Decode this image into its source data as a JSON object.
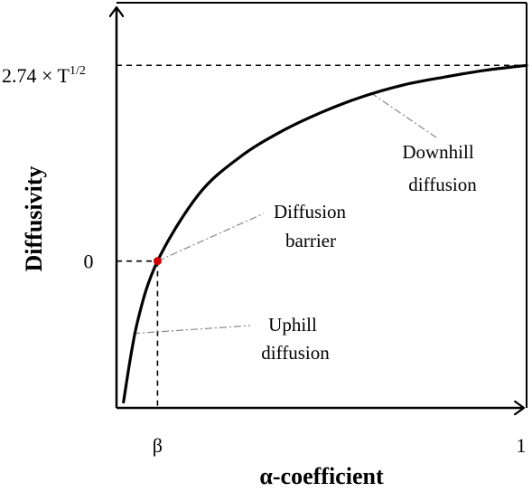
{
  "chart_data": {
    "type": "line",
    "xlabel": "α-coefficient",
    "ylabel": "Diffusivity",
    "x_ticks": [
      {
        "label": "β",
        "x": 0.1
      },
      {
        "label": "1",
        "x": 1.0
      }
    ],
    "y_ticks": [
      {
        "label": "0",
        "y": 0
      },
      {
        "label_main": "2.74 × T",
        "label_sup": "1/2",
        "y": 1
      }
    ],
    "xlim": [
      0,
      1
    ],
    "ylim": [
      -0.75,
      1.32
    ],
    "grid": false,
    "series": [
      {
        "color": "#000000",
        "points": [
          {
            "x": 0.017,
            "y": -0.72
          },
          {
            "x": 0.05,
            "y": -0.32
          },
          {
            "x": 0.1,
            "y": 0.0
          },
          {
            "x": 0.2,
            "y": 0.34
          },
          {
            "x": 0.3,
            "y": 0.53
          },
          {
            "x": 0.4,
            "y": 0.66
          },
          {
            "x": 0.5,
            "y": 0.76
          },
          {
            "x": 0.6,
            "y": 0.84
          },
          {
            "x": 0.7,
            "y": 0.9
          },
          {
            "x": 0.8,
            "y": 0.94
          },
          {
            "x": 0.9,
            "y": 0.975
          },
          {
            "x": 1.0,
            "y": 1.0
          }
        ]
      }
    ],
    "marker": {
      "x": 0.1,
      "y": 0,
      "color": "#d00000"
    },
    "annotations": [
      {
        "id": "downhill",
        "lines": [
          "Downhill",
          "diffusion"
        ],
        "point": {
          "x": 0.62,
          "y": 0.86
        }
      },
      {
        "id": "barrier",
        "lines": [
          "Diffusion",
          "barrier"
        ],
        "point": {
          "x": 0.1,
          "y": 0.0
        }
      },
      {
        "id": "uphill",
        "lines": [
          "Uphill",
          "diffusion"
        ],
        "point": {
          "x": 0.04,
          "y": -0.37
        }
      }
    ]
  }
}
